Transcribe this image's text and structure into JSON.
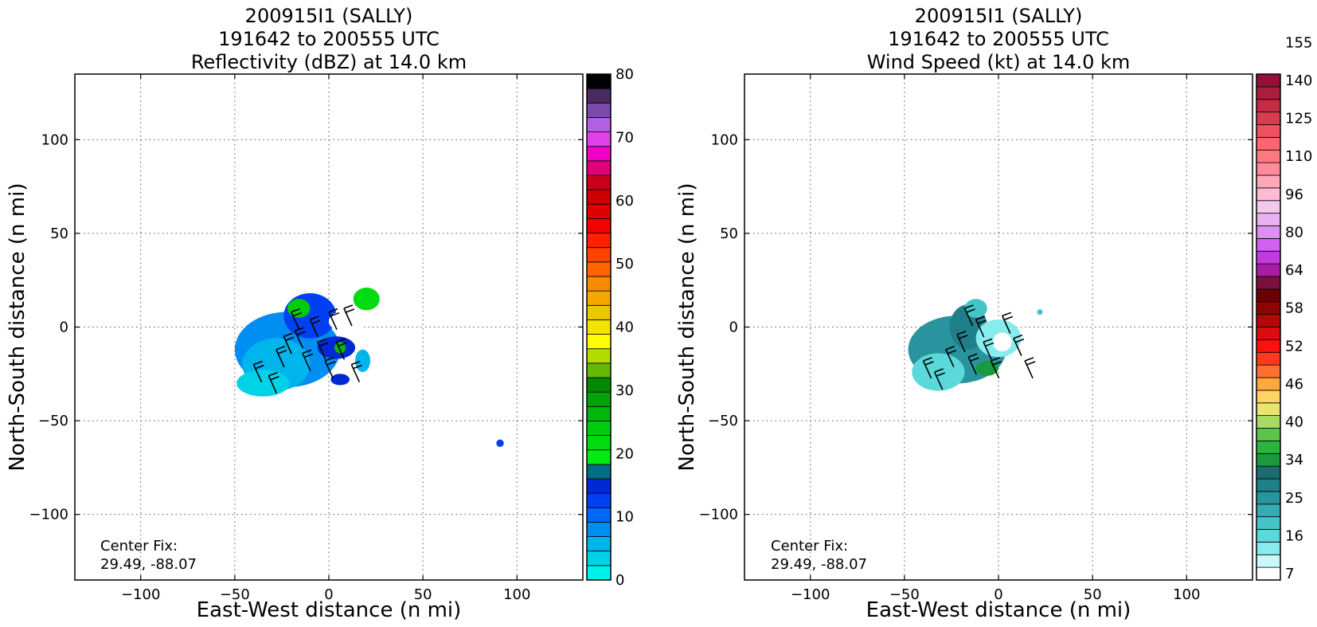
{
  "chart_data": [
    {
      "type": "heatmap",
      "title_lines": [
        "200915I1 (SALLY)",
        "191642 to 200555 UTC",
        "Reflectivity (dBZ) at 14.0 km"
      ],
      "xlabel": "East-West distance (n mi)",
      "ylabel": "North-South distance (n mi)",
      "xlim": [
        -135,
        135
      ],
      "ylim": [
        -135,
        135
      ],
      "xticks": [
        -100,
        -50,
        0,
        50,
        100
      ],
      "yticks": [
        -100,
        -50,
        0,
        50,
        100
      ],
      "xtick_labels": [
        "−100",
        "−50",
        "0",
        "50",
        "100"
      ],
      "ytick_labels": [
        "−100",
        "−50",
        "0",
        "50",
        "100"
      ],
      "grid": true,
      "center_fix_label": "Center Fix:",
      "center_fix_value": "29.49, -88.07",
      "colorbar": {
        "min": 0,
        "max": 80,
        "colors": [
          "#00f0ea",
          "#00d2e8",
          "#00b4ec",
          "#008ef2",
          "#0068f8",
          "#0040f2",
          "#0028d4",
          "#006e82",
          "#00ec10",
          "#00dc10",
          "#00cc0e",
          "#00b80c",
          "#00a40a",
          "#008a08",
          "#66b800",
          "#b4dc00",
          "#ffff00",
          "#f0e400",
          "#ecc800",
          "#f4a800",
          "#f88c00",
          "#ff6400",
          "#ff4400",
          "#ff2200",
          "#f40000",
          "#e00000",
          "#cc0000",
          "#c8001c",
          "#e0007a",
          "#f000c8",
          "#e040e8",
          "#b060e0",
          "#7a4aaa",
          "#4a2a60",
          "#000000"
        ],
        "ticks": [
          0,
          10,
          20,
          30,
          40,
          50,
          60,
          70,
          80
        ],
        "tick_labels": [
          "0",
          "10",
          "20",
          "30",
          "40",
          "50",
          "60",
          "70",
          "80"
        ]
      },
      "echo_regions": [
        {
          "x": -22,
          "y": -12,
          "rx": 28,
          "ry": 20,
          "color": "#008ef2"
        },
        {
          "x": -28,
          "y": -20,
          "rx": 18,
          "ry": 14,
          "color": "#00b4ec"
        },
        {
          "x": -35,
          "y": -30,
          "rx": 14,
          "ry": 7,
          "color": "#00d2e8"
        },
        {
          "x": -10,
          "y": 6,
          "rx": 14,
          "ry": 12,
          "color": "#0040f2"
        },
        {
          "x": -16,
          "y": 10,
          "rx": 6,
          "ry": 5,
          "color": "#00cc0e"
        },
        {
          "x": 4,
          "y": -11,
          "rx": 10,
          "ry": 6,
          "color": "#0028d4"
        },
        {
          "x": 6,
          "y": -11,
          "rx": 3,
          "ry": 3,
          "color": "#00b80c"
        },
        {
          "x": 6,
          "y": -28,
          "rx": 5,
          "ry": 3,
          "color": "#0028d4"
        },
        {
          "x": 20,
          "y": 15,
          "rx": 7,
          "ry": 6,
          "color": "#00dc10"
        },
        {
          "x": 18,
          "y": -18,
          "rx": 4,
          "ry": 6,
          "color": "#00b4ec"
        },
        {
          "x": 10,
          "y": 3,
          "rx": 10,
          "ry": 6,
          "color": "#ffffff"
        },
        {
          "x": 91,
          "y": -62,
          "rx": 2,
          "ry": 2,
          "color": "#0040f2"
        }
      ],
      "wind_barbs": [
        {
          "x": -40,
          "y": -20
        },
        {
          "x": -32,
          "y": -26
        },
        {
          "x": -28,
          "y": -12
        },
        {
          "x": -24,
          "y": -5
        },
        {
          "x": -18,
          "y": -2
        },
        {
          "x": -14,
          "y": -14
        },
        {
          "x": -10,
          "y": 4
        },
        {
          "x": -6,
          "y": -8
        },
        {
          "x": -2,
          "y": -18
        },
        {
          "x": 0,
          "y": 8
        },
        {
          "x": 4,
          "y": -8
        },
        {
          "x": 8,
          "y": 10
        },
        {
          "x": 12,
          "y": -20
        },
        {
          "x": -20,
          "y": 8
        }
      ]
    },
    {
      "type": "heatmap",
      "title_lines": [
        "200915I1 (SALLY)",
        "191642 to 200555 UTC",
        "Wind Speed (kt) at 14.0 km"
      ],
      "xlabel": "East-West distance (n mi)",
      "ylabel": "North-South distance (n mi)",
      "xlim": [
        -135,
        135
      ],
      "ylim": [
        -135,
        135
      ],
      "xticks": [
        -100,
        -50,
        0,
        50,
        100
      ],
      "yticks": [
        -100,
        -50,
        0,
        50,
        100
      ],
      "xtick_labels": [
        "−100",
        "−50",
        "0",
        "50",
        "100"
      ],
      "ytick_labels": [
        "−100",
        "−50",
        "0",
        "50",
        "100"
      ],
      "grid": true,
      "center_fix_label": "Center Fix:",
      "center_fix_value": "29.49, -88.07",
      "colorbar": {
        "colors": [
          "#ffffff",
          "#c8f8f8",
          "#88ecec",
          "#5ad8da",
          "#44c4c8",
          "#34acb4",
          "#2a949e",
          "#20808a",
          "#1a6c70",
          "#1a9a3c",
          "#2cb440",
          "#5cc44a",
          "#a8dc60",
          "#e8e470",
          "#ffd460",
          "#ffa840",
          "#ff7030",
          "#ff3820",
          "#ff1010",
          "#dc0c0c",
          "#b40808",
          "#8c0404",
          "#6c0000",
          "#7a1040",
          "#a81ca8",
          "#c03ce0",
          "#d060ee",
          "#de90f0",
          "#eab0f2",
          "#f4c8ec",
          "#fcbcd4",
          "#ffa8b8",
          "#ff8c98",
          "#ff7880",
          "#ff6470",
          "#f05060",
          "#d83c50",
          "#c42c44",
          "#ac1c3c",
          "#941038"
        ],
        "tick_labels": [
          "7",
          "16",
          "25",
          "34",
          "40",
          "46",
          "52",
          "58",
          "64",
          "80",
          "96",
          "110",
          "125",
          "140",
          "155"
        ]
      },
      "echo_regions": [
        {
          "x": -22,
          "y": -12,
          "rx": 26,
          "ry": 18,
          "color": "#2a949e"
        },
        {
          "x": -32,
          "y": -24,
          "rx": 14,
          "ry": 10,
          "color": "#5ad8da"
        },
        {
          "x": -16,
          "y": 0,
          "rx": 10,
          "ry": 12,
          "color": "#20808a"
        },
        {
          "x": -12,
          "y": 10,
          "rx": 6,
          "ry": 5,
          "color": "#44c4c8"
        },
        {
          "x": 0,
          "y": -6,
          "rx": 12,
          "ry": 10,
          "color": "#88ecec"
        },
        {
          "x": 2,
          "y": -8,
          "rx": 5,
          "ry": 5,
          "color": "#ffffff"
        },
        {
          "x": -6,
          "y": -22,
          "rx": 6,
          "ry": 4,
          "color": "#1a9a3c"
        },
        {
          "x": 22,
          "y": 8,
          "rx": 1.5,
          "ry": 1.5,
          "color": "#44c4c8"
        }
      ],
      "wind_barbs": [
        {
          "x": -40,
          "y": -18
        },
        {
          "x": -34,
          "y": -24
        },
        {
          "x": -28,
          "y": -12
        },
        {
          "x": -22,
          "y": -4
        },
        {
          "x": -16,
          "y": -16
        },
        {
          "x": -12,
          "y": 4
        },
        {
          "x": -8,
          "y": -8
        },
        {
          "x": -4,
          "y": -18
        },
        {
          "x": 2,
          "y": 6
        },
        {
          "x": 8,
          "y": -6
        },
        {
          "x": 14,
          "y": -18
        },
        {
          "x": -18,
          "y": 10
        }
      ]
    }
  ]
}
